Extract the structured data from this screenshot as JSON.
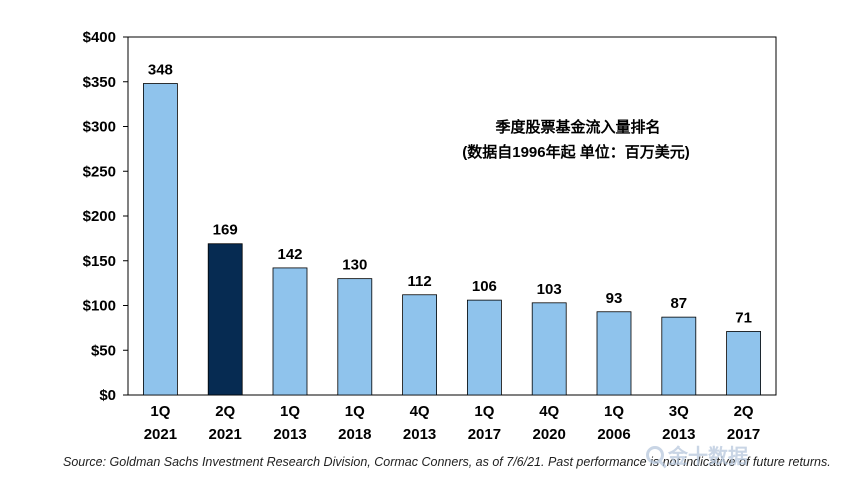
{
  "chart_data": {
    "type": "bar",
    "categories": [
      [
        "1Q",
        "2021"
      ],
      [
        "2Q",
        "2021"
      ],
      [
        "1Q",
        "2013"
      ],
      [
        "1Q",
        "2018"
      ],
      [
        "4Q",
        "2013"
      ],
      [
        "1Q",
        "2017"
      ],
      [
        "4Q",
        "2020"
      ],
      [
        "1Q",
        "2006"
      ],
      [
        "3Q",
        "2013"
      ],
      [
        "2Q",
        "2017"
      ]
    ],
    "values": [
      348,
      169,
      142,
      130,
      112,
      106,
      103,
      93,
      87,
      71
    ],
    "highlight_index": 1,
    "colors": {
      "bar": "#8fc3ec",
      "highlight": "#062b52",
      "stroke": "#000000",
      "frame": "#000000"
    },
    "ylim": [
      0,
      400
    ],
    "yticks": [
      0,
      50,
      100,
      150,
      200,
      250,
      300,
      350,
      400
    ],
    "ytick_labels": [
      "$0",
      "$50",
      "$100",
      "$150",
      "$200",
      "$250",
      "$300",
      "$350",
      "$400"
    ],
    "grid": false,
    "title": "季度股票基金流入量排名",
    "subtitle": "(数据自1996年起 单位：百万美元)",
    "xlabel": "",
    "ylabel": ""
  },
  "source_note": "Source: Goldman Sachs Investment Research Division, Cormac Conners, as of 7/6/21. Past performance is not indicative of future returns.",
  "watermark": {
    "icon": "search-icon",
    "text": "金十数据"
  }
}
